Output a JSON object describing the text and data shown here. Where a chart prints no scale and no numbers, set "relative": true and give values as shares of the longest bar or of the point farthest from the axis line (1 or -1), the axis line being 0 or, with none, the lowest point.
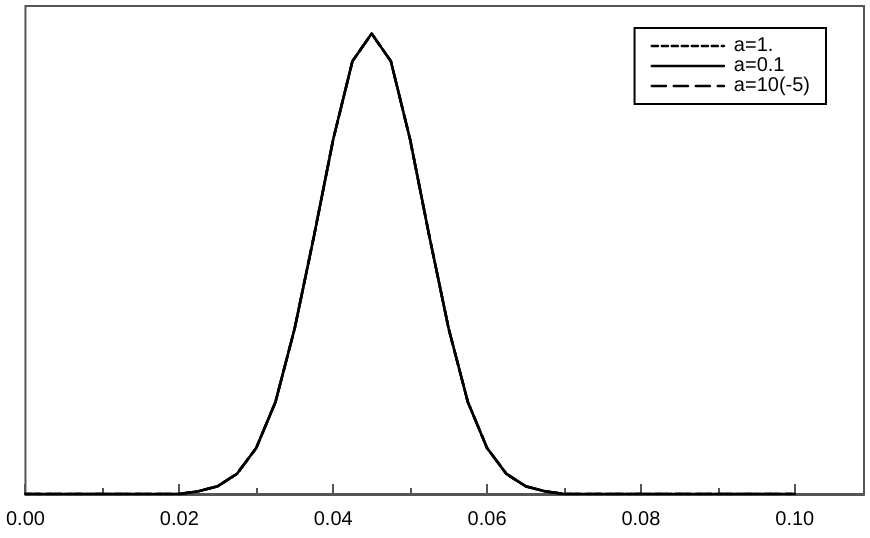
{
  "chart_data": {
    "type": "line",
    "relative": true,
    "x": [
      0,
      0.01,
      0.02,
      0.0225,
      0.025,
      0.0275,
      0.03,
      0.0325,
      0.035,
      0.0375,
      0.04,
      0.0425,
      0.045,
      0.0475,
      0.05,
      0.0525,
      0.055,
      0.0575,
      0.06,
      0.0625,
      0.065,
      0.0675,
      0.07,
      0.08,
      0.09,
      0.1
    ],
    "series": [
      {
        "name": "a=1.",
        "color": "#000000",
        "line_style": "dotted",
        "values": [
          0,
          0,
          0,
          0.006,
          0.017,
          0.044,
          0.1,
          0.2,
          0.36,
          0.56,
          0.77,
          0.94,
          1,
          0.94,
          0.77,
          0.56,
          0.36,
          0.2,
          0.1,
          0.044,
          0.017,
          0.006,
          0,
          0,
          0,
          0
        ]
      },
      {
        "name": "a=0.1",
        "color": "#000000",
        "line_style": "solid",
        "values": [
          0,
          0,
          0,
          0.006,
          0.017,
          0.044,
          0.1,
          0.2,
          0.36,
          0.56,
          0.77,
          0.94,
          1,
          0.94,
          0.77,
          0.56,
          0.36,
          0.2,
          0.1,
          0.044,
          0.017,
          0.006,
          0,
          0,
          0,
          0
        ]
      },
      {
        "name": "a=10(-5)",
        "color": "#000000",
        "line_style": "dashed",
        "values": [
          0,
          0,
          0,
          0.006,
          0.017,
          0.044,
          0.1,
          0.2,
          0.36,
          0.56,
          0.77,
          0.94,
          1,
          0.94,
          0.77,
          0.56,
          0.36,
          0.2,
          0.1,
          0.044,
          0.017,
          0.006,
          0,
          0,
          0,
          0
        ]
      }
    ],
    "xlim": [
      0,
      0.109
    ],
    "xticks": [
      {
        "value": 0,
        "label": "0.00"
      },
      0.02,
      0.04,
      0.06,
      0.08,
      {
        "value": 0.1,
        "label": "0.10"
      }
    ],
    "tick_labels": "x",
    "grid": false,
    "legend": "top right",
    "marker": "none"
  }
}
